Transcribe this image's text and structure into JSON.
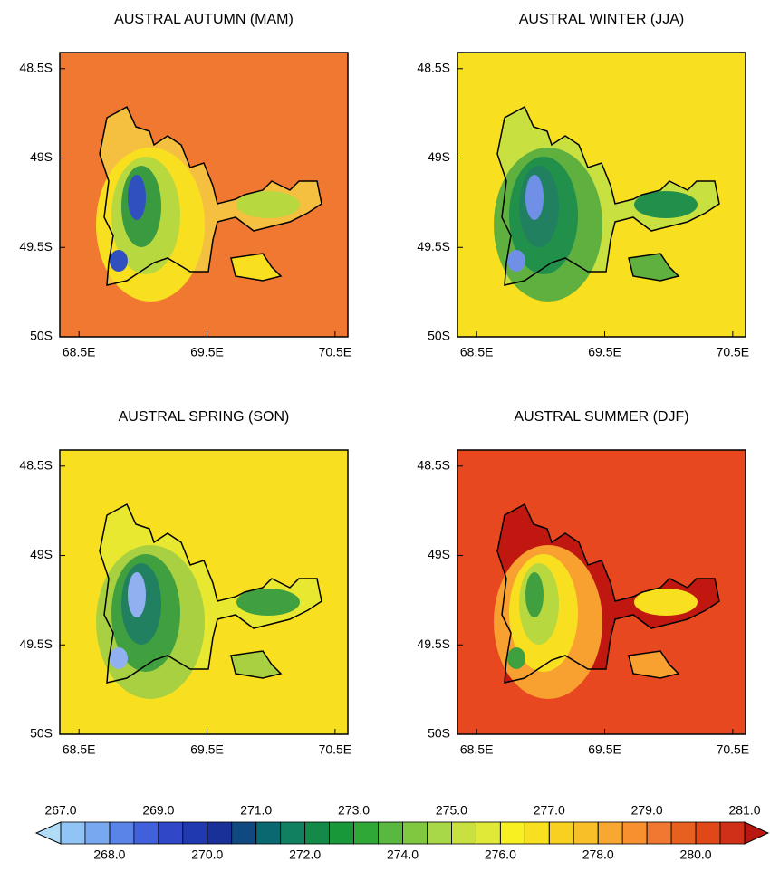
{
  "chart_data": [
    {
      "type": "map",
      "title": "AUSTRAL AUTUMN (MAM)",
      "background_color": "#f07830",
      "island_colors": [
        "#f5c040",
        "#f8e020",
        "#b8d840",
        "#3a9a40",
        "#3050c0"
      ],
      "xlim": [
        68.35,
        70.6
      ],
      "ylim": [
        -50,
        -48.41
      ],
      "xticks": [
        {
          "value": 68.5,
          "label": "68.5E"
        },
        {
          "value": 69.5,
          "label": "69.5E"
        },
        {
          "value": 70.5,
          "label": "70.5E"
        }
      ],
      "yticks": [
        {
          "value": -48.5,
          "label": "48.5S"
        },
        {
          "value": -49,
          "label": "49S"
        },
        {
          "value": -49.5,
          "label": "49.5S"
        },
        {
          "value": -50,
          "label": "50S"
        }
      ]
    },
    {
      "type": "map",
      "title": "AUSTRAL WINTER (JJA)",
      "background_color": "#f8e020",
      "island_colors": [
        "#c8e040",
        "#60b040",
        "#20904a",
        "#208060",
        "#7090e8"
      ],
      "xlim": [
        68.35,
        70.6
      ],
      "ylim": [
        -50,
        -48.41
      ],
      "xticks": [
        {
          "value": 68.5,
          "label": "68.5E"
        },
        {
          "value": 69.5,
          "label": "69.5E"
        },
        {
          "value": 70.5,
          "label": "70.5E"
        }
      ],
      "yticks": [
        {
          "value": -48.5,
          "label": "48.5S"
        },
        {
          "value": -49,
          "label": "49S"
        },
        {
          "value": -49.5,
          "label": "49.5S"
        },
        {
          "value": -50,
          "label": "50S"
        }
      ]
    },
    {
      "type": "map",
      "title": "AUSTRAL SPRING (SON)",
      "background_color": "#f8e020",
      "island_colors": [
        "#e8e830",
        "#a8d040",
        "#40a040",
        "#208060",
        "#90b0f0"
      ],
      "xlim": [
        68.35,
        70.6
      ],
      "ylim": [
        -50,
        -48.41
      ],
      "xticks": [
        {
          "value": 68.5,
          "label": "68.5E"
        },
        {
          "value": 69.5,
          "label": "69.5E"
        },
        {
          "value": 70.5,
          "label": "70.5E"
        }
      ],
      "yticks": [
        {
          "value": -48.5,
          "label": "48.5S"
        },
        {
          "value": -49,
          "label": "49S"
        },
        {
          "value": -49.5,
          "label": "49.5S"
        },
        {
          "value": -50,
          "label": "50S"
        }
      ]
    },
    {
      "type": "map",
      "title": "AUSTRAL SUMMER (DJF)",
      "background_color": "#e84820",
      "island_colors": [
        "#c01810",
        "#f8a030",
        "#f8e020",
        "#b8d840",
        "#40a040"
      ],
      "xlim": [
        68.35,
        70.6
      ],
      "ylim": [
        -50,
        -48.41
      ],
      "xticks": [
        {
          "value": 68.5,
          "label": "68.5E"
        },
        {
          "value": 69.5,
          "label": "69.5E"
        },
        {
          "value": 70.5,
          "label": "70.5E"
        }
      ],
      "yticks": [
        {
          "value": -48.5,
          "label": "48.5S"
        },
        {
          "value": -49,
          "label": "49S"
        },
        {
          "value": -49.5,
          "label": "49.5S"
        },
        {
          "value": -50,
          "label": "50S"
        }
      ]
    }
  ],
  "colorbar": {
    "lim": [
      267,
      281
    ],
    "step": 0.5,
    "ticks": [
      {
        "value": 267,
        "label": "267.0"
      },
      {
        "value": 268,
        "label": "268.0"
      },
      {
        "value": 269,
        "label": "269.0"
      },
      {
        "value": 270,
        "label": "270.0"
      },
      {
        "value": 271,
        "label": "271.0"
      },
      {
        "value": 272,
        "label": "272.0"
      },
      {
        "value": 273,
        "label": "273.0"
      },
      {
        "value": 274,
        "label": "274.0"
      },
      {
        "value": 275,
        "label": "275.0"
      },
      {
        "value": 276,
        "label": "276.0"
      },
      {
        "value": 277,
        "label": "277.0"
      },
      {
        "value": 278,
        "label": "278.0"
      },
      {
        "value": 279,
        "label": "279.0"
      },
      {
        "value": 280,
        "label": "280.0"
      },
      {
        "value": 281,
        "label": "281.0"
      }
    ],
    "colors": [
      "#b0dcf8",
      "#90c4f4",
      "#78a8f0",
      "#5a84e8",
      "#4060dc",
      "#3048c8",
      "#2038b0",
      "#183098",
      "#104880",
      "#0a6870",
      "#108060",
      "#148a48",
      "#189838",
      "#30a838",
      "#58b840",
      "#80c840",
      "#a8d848",
      "#c8e040",
      "#e0e838",
      "#f8f020",
      "#f8e020",
      "#f8d020",
      "#f8c028",
      "#f8a830",
      "#f89030",
      "#f07830",
      "#e86020",
      "#e04818",
      "#d03018",
      "#b81810",
      "#a00c0c",
      "#880808"
    ]
  }
}
